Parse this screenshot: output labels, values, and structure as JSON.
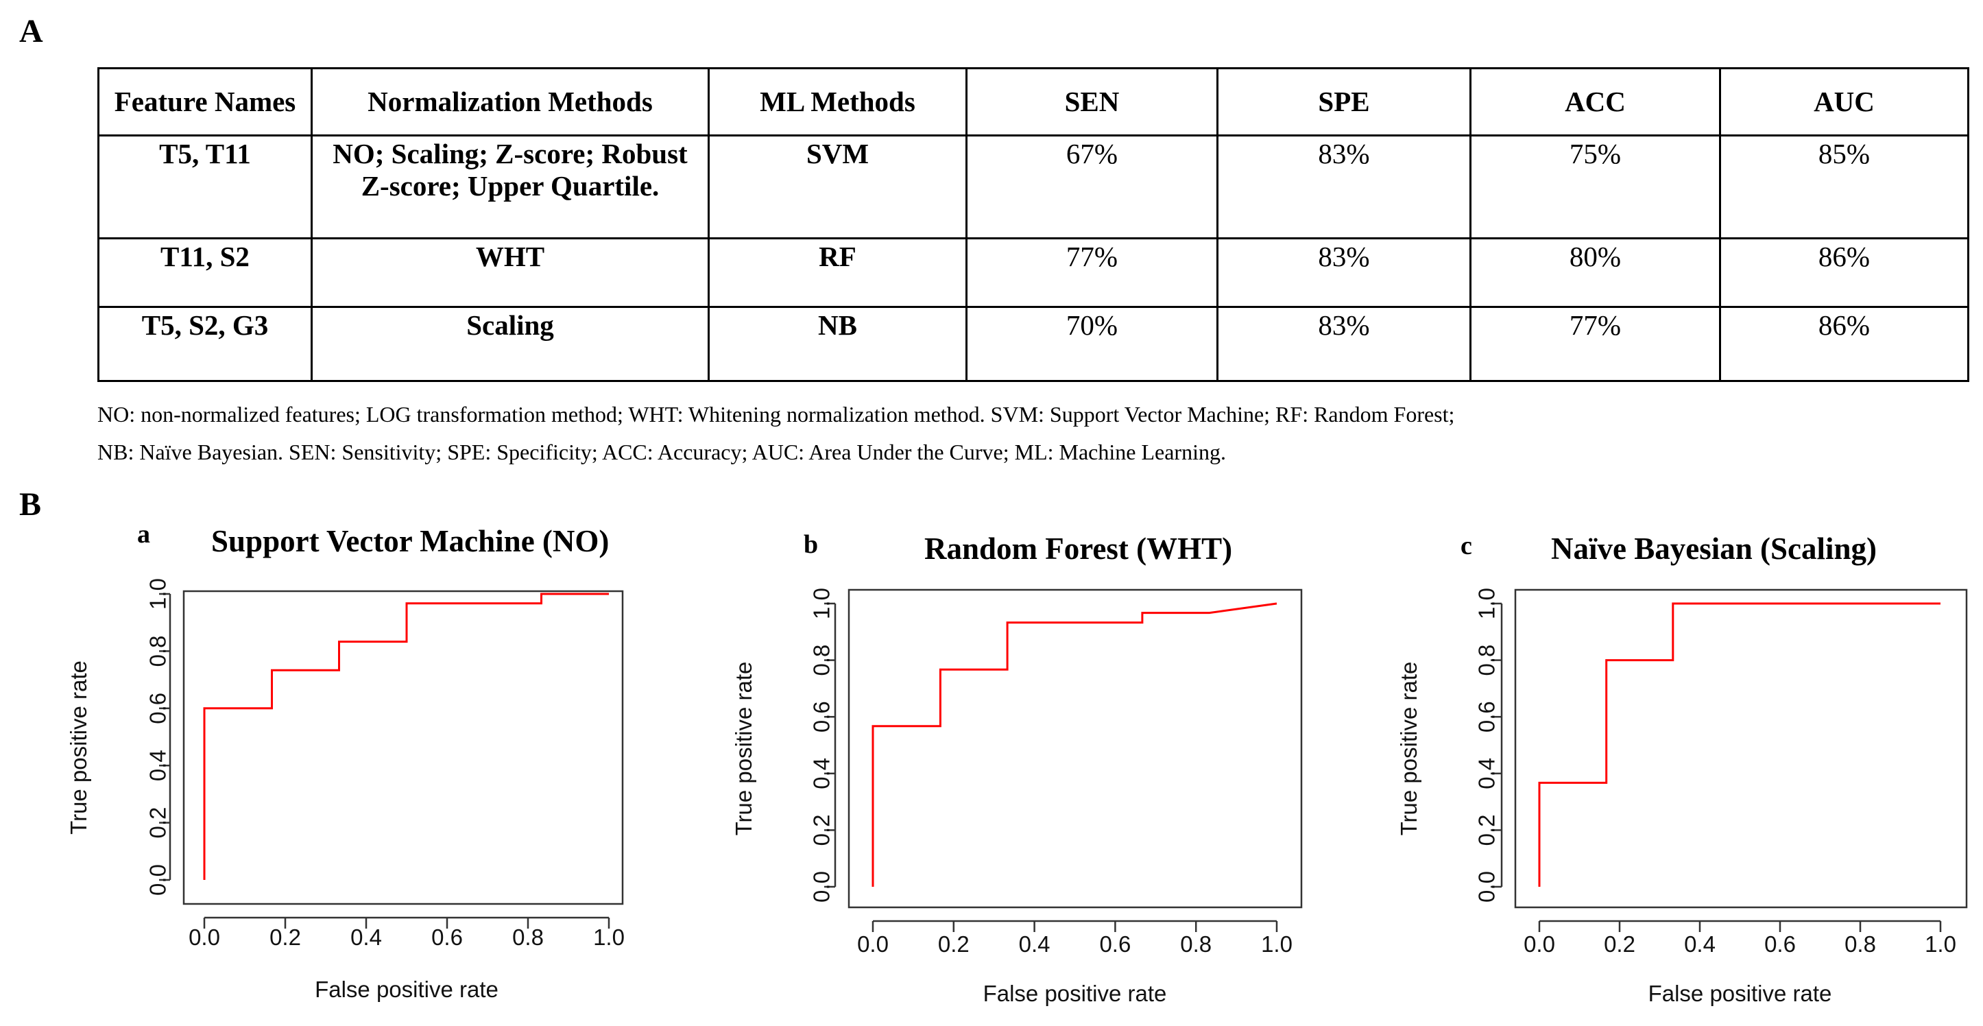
{
  "panel_a_label": "A",
  "panel_b_label": "B",
  "table": {
    "headers": [
      "Feature Names",
      "Normalization Methods",
      "ML Methods",
      "SEN",
      "SPE",
      "ACC",
      "AUC"
    ],
    "rows": [
      [
        "T5, T11",
        "NO; Scaling; Z-score; Robust Z-score; Upper Quartile.",
        "SVM",
        "67%",
        "83%",
        "75%",
        "85%"
      ],
      [
        "T11, S2",
        "WHT",
        "RF",
        "77%",
        "83%",
        "80%",
        "86%"
      ],
      [
        "T5, S2, G3",
        "Scaling",
        "NB",
        "70%",
        "83%",
        "77%",
        "86%"
      ]
    ]
  },
  "footnote": {
    "line1": "NO: non-normalized features; LOG transformation method; WHT: Whitening normalization method. SVM: Support Vector Machine; RF: Random Forest;",
    "line2": "NB: Naïve Bayesian. SEN: Sensitivity; SPE: Specificity; ACC: Accuracy; AUC: Area Under the Curve; ML: Machine Learning."
  },
  "chart_data": [
    {
      "type": "line",
      "panel": "a",
      "title": "Support Vector Machine (NO)",
      "xlabel": "False positive rate",
      "ylabel": "True positive rate",
      "xlim": [
        0,
        1
      ],
      "ylim": [
        0,
        1
      ],
      "xticks": [
        "0.0",
        "0.2",
        "0.4",
        "0.6",
        "0.8",
        "1.0"
      ],
      "yticks": [
        "0.0",
        "0.2",
        "0.4",
        "0.6",
        "0.8",
        "1.0"
      ],
      "color": "#ff0000",
      "x": [
        0,
        0,
        0.167,
        0.167,
        0.333,
        0.333,
        0.5,
        0.5,
        0.833,
        0.833,
        1.0
      ],
      "y": [
        0,
        0.6,
        0.6,
        0.733,
        0.733,
        0.833,
        0.833,
        0.967,
        0.967,
        1.0,
        1.0
      ]
    },
    {
      "type": "line",
      "panel": "b",
      "title": "Random Forest (WHT)",
      "xlabel": "False positive rate",
      "ylabel": "True positive rate",
      "xlim": [
        0,
        1
      ],
      "ylim": [
        0,
        1
      ],
      "xticks": [
        "0.0",
        "0.2",
        "0.4",
        "0.6",
        "0.8",
        "1.0"
      ],
      "yticks": [
        "0.0",
        "0.2",
        "0.4",
        "0.6",
        "0.8",
        "1.0"
      ],
      "color": "#ff0000",
      "x": [
        0,
        0,
        0.167,
        0.167,
        0.333,
        0.333,
        0.667,
        0.667,
        0.833,
        1.0
      ],
      "y": [
        0,
        0.567,
        0.567,
        0.767,
        0.767,
        0.933,
        0.933,
        0.967,
        0.967,
        1.0
      ]
    },
    {
      "type": "line",
      "panel": "c",
      "title": "Naïve Bayesian (Scaling)",
      "xlabel": "False positive rate",
      "ylabel": "True positive rate",
      "xlim": [
        0,
        1
      ],
      "ylim": [
        0,
        1
      ],
      "xticks": [
        "0.0",
        "0.2",
        "0.4",
        "0.6",
        "0.8",
        "1.0"
      ],
      "yticks": [
        "0.0",
        "0.2",
        "0.4",
        "0.6",
        "0.8",
        "1.0"
      ],
      "color": "#ff0000",
      "x": [
        0,
        0,
        0.167,
        0.167,
        0.333,
        0.333,
        1.0
      ],
      "y": [
        0,
        0.367,
        0.367,
        0.8,
        0.8,
        1.0,
        1.0
      ]
    }
  ]
}
